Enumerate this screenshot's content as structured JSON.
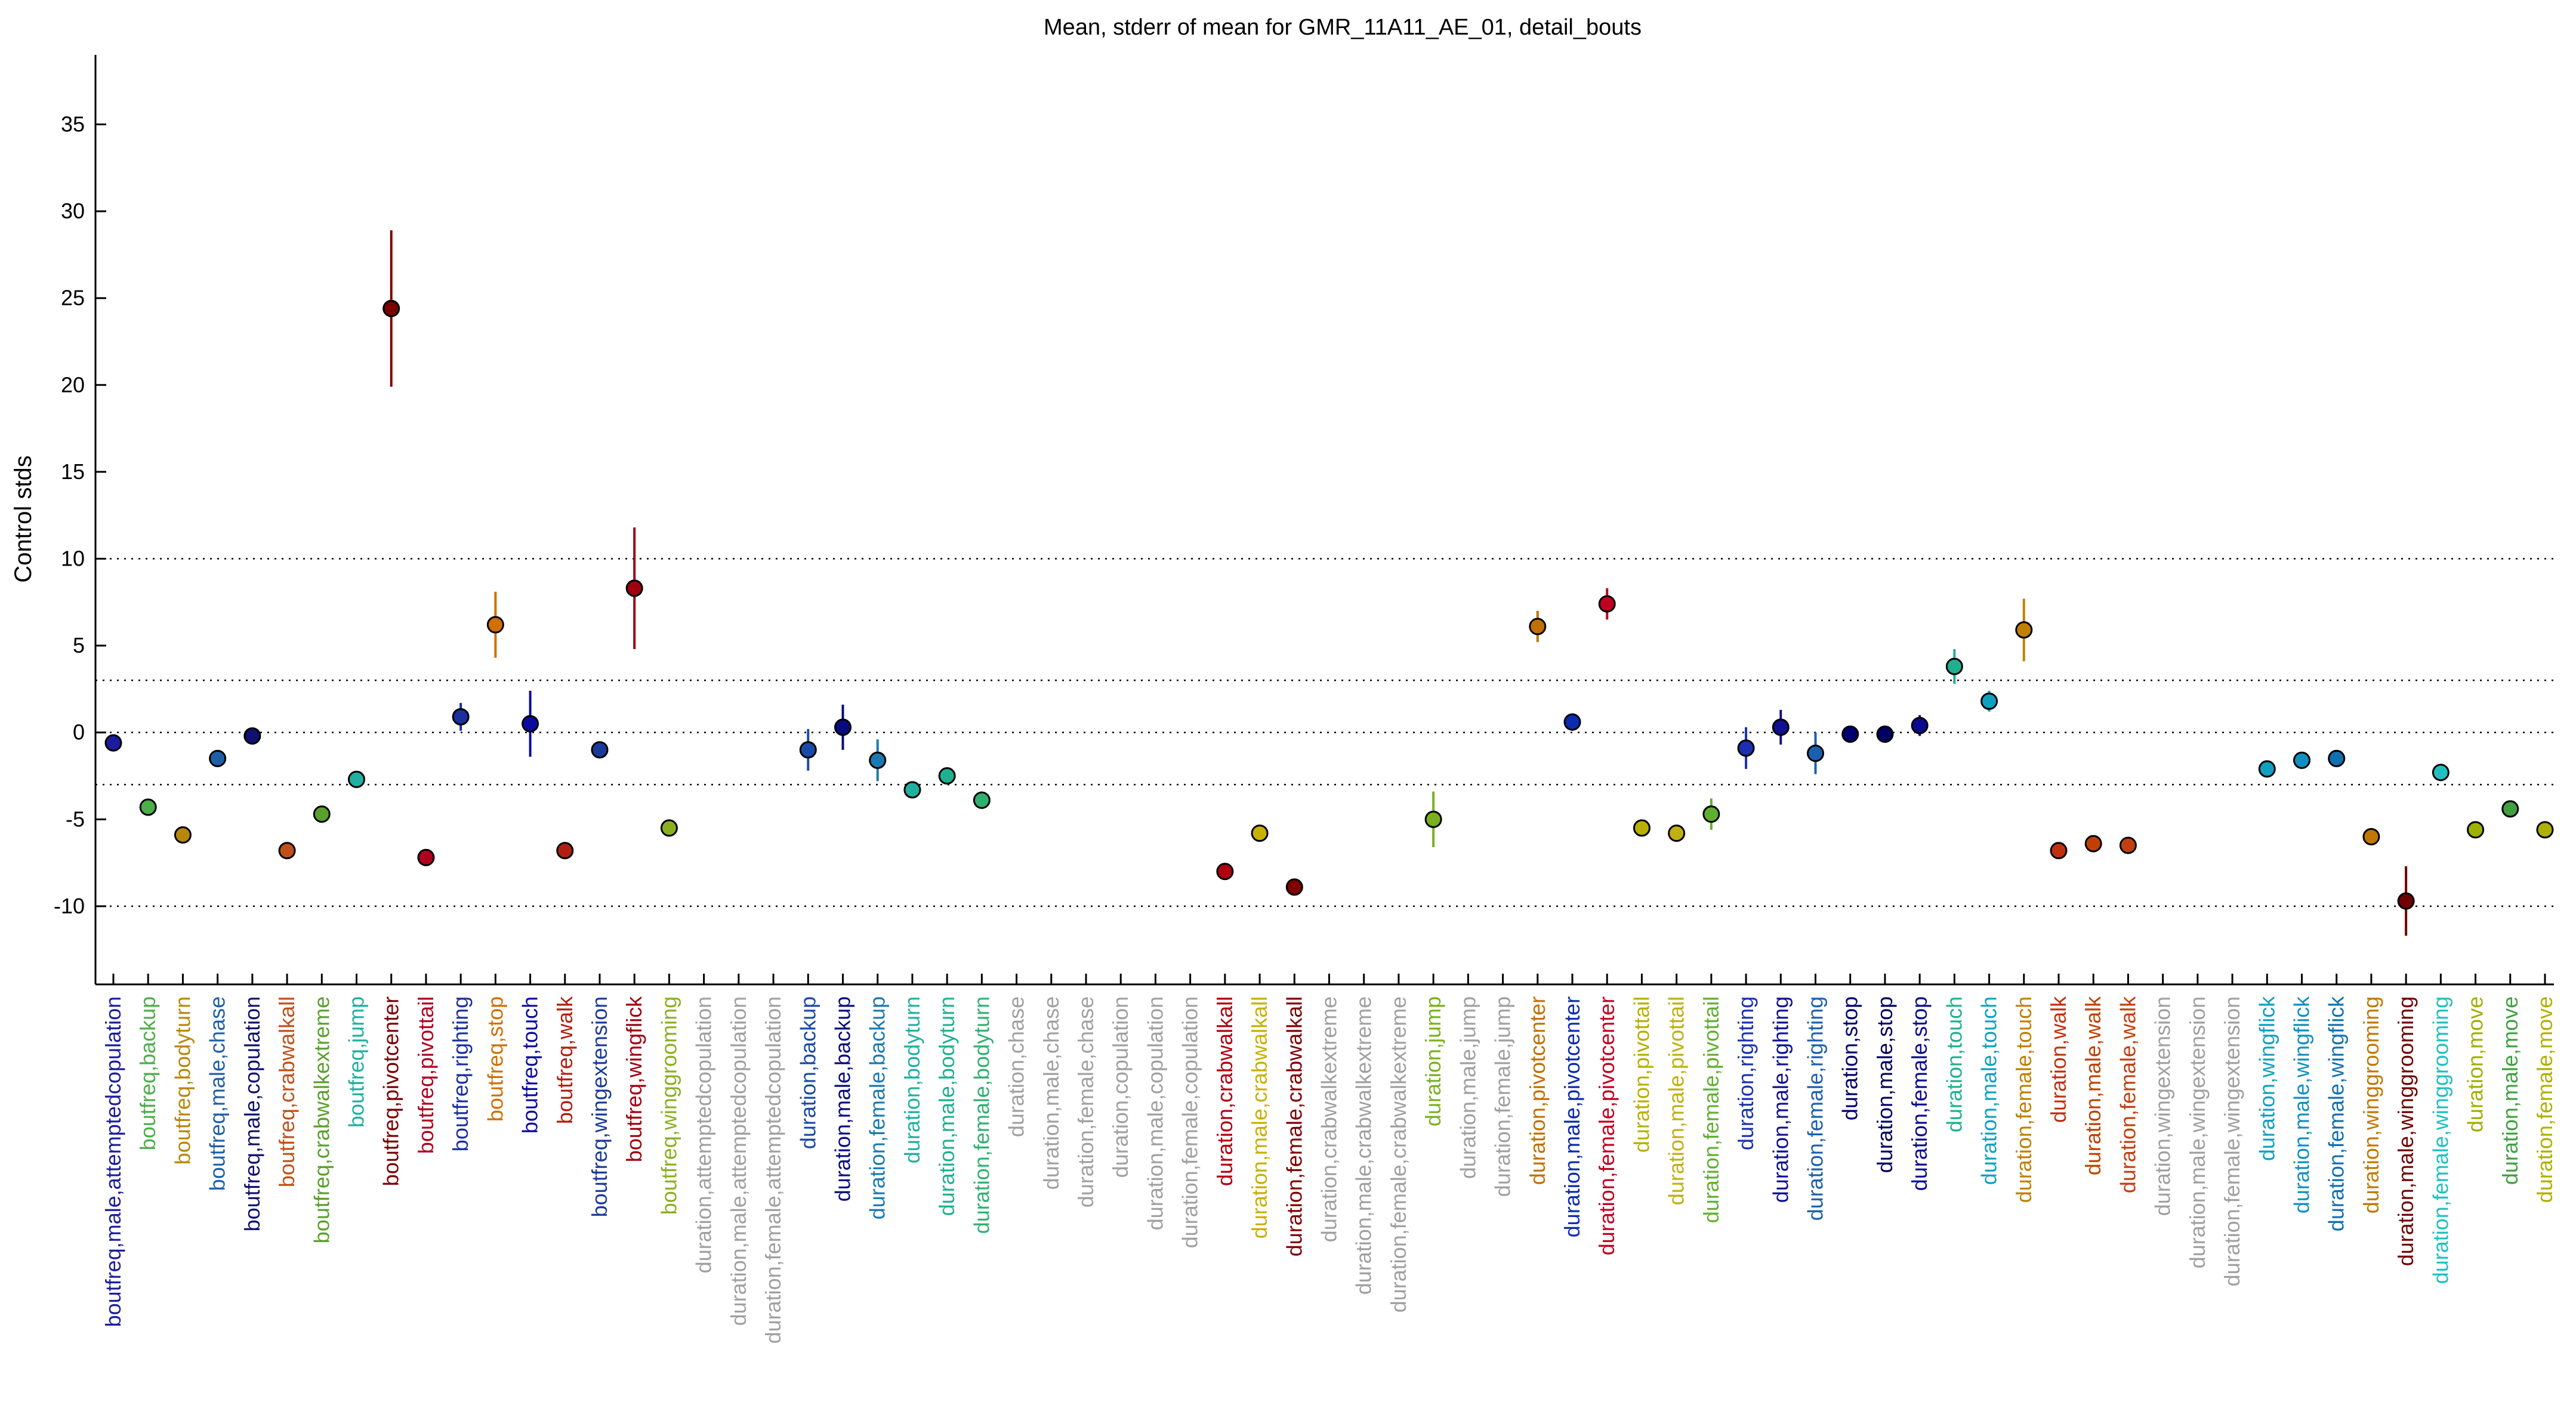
{
  "chart_data": {
    "type": "scatter",
    "title": "Mean, stderr of mean for GMR_11A11_AE_01, detail_bouts",
    "ylabel": "Control stds",
    "xlabel": "",
    "ylim": [
      -14.5,
      39
    ],
    "yticks": [
      -10,
      -5,
      0,
      5,
      10,
      15,
      20,
      25,
      30,
      35
    ],
    "reference_lines": [
      -10,
      -3,
      0,
      3,
      10
    ],
    "grid": false,
    "categories": [
      {
        "label": "boutfreq,male,attemptedcopulation",
        "color": "#1c1c9c"
      },
      {
        "label": "boutfreq,backup",
        "color": "#4daf4a"
      },
      {
        "label": "boutfreq,bodyturn",
        "color": "#b8860b"
      },
      {
        "label": "boutfreq,male,chase",
        "color": "#1f5fa8"
      },
      {
        "label": "boutfreq,male,copulation",
        "color": "#10106e"
      },
      {
        "label": "boutfreq,crabwalkall",
        "color": "#c0501a"
      },
      {
        "label": "boutfreq,crabwalkextreme",
        "color": "#5aa02c"
      },
      {
        "label": "boutfreq,jump",
        "color": "#20b0a0"
      },
      {
        "label": "boutfreq,pivotcenter",
        "color": "#7a0000"
      },
      {
        "label": "boutfreq,pivottail",
        "color": "#b00020"
      },
      {
        "label": "boutfreq,righting",
        "color": "#1a2fa0"
      },
      {
        "label": "boutfreq,stop",
        "color": "#d07000"
      },
      {
        "label": "boutfreq,touch",
        "color": "#0a0aa0"
      },
      {
        "label": "boutfreq,walk",
        "color": "#b02010"
      },
      {
        "label": "boutfreq,wingextension",
        "color": "#1a3a9a"
      },
      {
        "label": "boutfreq,wingflick",
        "color": "#a00010"
      },
      {
        "label": "boutfreq,winggrooming",
        "color": "#8ab020"
      },
      {
        "label": "duration,attemptedcopulation",
        "color": "#a0a0a0"
      },
      {
        "label": "duration,male,attemptedcopulation",
        "color": "#a0a0a0"
      },
      {
        "label": "duration,female,attemptedcopulation",
        "color": "#a0a0a0"
      },
      {
        "label": "duration,backup",
        "color": "#1a4aa8"
      },
      {
        "label": "duration,male,backup",
        "color": "#0a0a80"
      },
      {
        "label": "duration,female,backup",
        "color": "#1a7ab0"
      },
      {
        "label": "duration,bodyturn",
        "color": "#20b0a0"
      },
      {
        "label": "duration,male,bodyturn",
        "color": "#20b090"
      },
      {
        "label": "duration,female,bodyturn",
        "color": "#30b070"
      },
      {
        "label": "duration,chase",
        "color": "#a0a0a0"
      },
      {
        "label": "duration,male,chase",
        "color": "#a0a0a0"
      },
      {
        "label": "duration,female,chase",
        "color": "#a0a0a0"
      },
      {
        "label": "duration,copulation",
        "color": "#a0a0a0"
      },
      {
        "label": "duration,male,copulation",
        "color": "#a0a0a0"
      },
      {
        "label": "duration,female,copulation",
        "color": "#a0a0a0"
      },
      {
        "label": "duration,crabwalkall",
        "color": "#b00010"
      },
      {
        "label": "duration,male,crabwalkall",
        "color": "#c8b000"
      },
      {
        "label": "duration,female,crabwalkall",
        "color": "#800000"
      },
      {
        "label": "duration,crabwalkextreme",
        "color": "#a0a0a0"
      },
      {
        "label": "duration,male,crabwalkextreme",
        "color": "#a0a0a0"
      },
      {
        "label": "duration,female,crabwalkextreme",
        "color": "#a0a0a0"
      },
      {
        "label": "duration,jump",
        "color": "#7ab020"
      },
      {
        "label": "duration,male,jump",
        "color": "#a0a0a0"
      },
      {
        "label": "duration,female,jump",
        "color": "#a0a0a0"
      },
      {
        "label": "duration,pivotcenter",
        "color": "#c07000"
      },
      {
        "label": "duration,male,pivotcenter",
        "color": "#0a2ab0"
      },
      {
        "label": "duration,female,pivotcenter",
        "color": "#c00020"
      },
      {
        "label": "duration,pivottail",
        "color": "#b8b000"
      },
      {
        "label": "duration,male,pivottail",
        "color": "#c0b010"
      },
      {
        "label": "duration,female,pivottail",
        "color": "#60b030"
      },
      {
        "label": "duration,righting",
        "color": "#1a30b0"
      },
      {
        "label": "duration,male,righting",
        "color": "#101090"
      },
      {
        "label": "duration,female,righting",
        "color": "#1a60b0"
      },
      {
        "label": "duration,stop",
        "color": "#000070"
      },
      {
        "label": "duration,male,stop",
        "color": "#000060"
      },
      {
        "label": "duration,female,stop",
        "color": "#0a0a90"
      },
      {
        "label": "duration,touch",
        "color": "#20b090"
      },
      {
        "label": "duration,male,touch",
        "color": "#10a0c0"
      },
      {
        "label": "duration,female,touch",
        "color": "#c08000"
      },
      {
        "label": "duration,walk",
        "color": "#c03010"
      },
      {
        "label": "duration,male,walk",
        "color": "#c04000"
      },
      {
        "label": "duration,female,walk",
        "color": "#c04010"
      },
      {
        "label": "duration,wingextension",
        "color": "#a0a0a0"
      },
      {
        "label": "duration,male,wingextension",
        "color": "#a0a0a0"
      },
      {
        "label": "duration,female,wingextension",
        "color": "#a0a0a0"
      },
      {
        "label": "duration,wingflick",
        "color": "#10a0c0"
      },
      {
        "label": "duration,male,wingflick",
        "color": "#1090c0"
      },
      {
        "label": "duration,female,wingflick",
        "color": "#1070b0"
      },
      {
        "label": "duration,winggrooming",
        "color": "#c07800"
      },
      {
        "label": "duration,male,winggrooming",
        "color": "#700000"
      },
      {
        "label": "duration,female,winggrooming",
        "color": "#20c0c0"
      },
      {
        "label": "duration,move",
        "color": "#a0b000"
      },
      {
        "label": "duration,male,move",
        "color": "#40a040"
      },
      {
        "label": "duration,female,move",
        "color": "#b0b000"
      }
    ],
    "series": [
      {
        "values": [
          -0.6,
          -4.3,
          -5.9,
          -1.5,
          -0.2,
          -6.8,
          -4.7,
          -2.7,
          24.4,
          -7.2,
          0.9,
          6.2,
          0.5,
          -6.8,
          -1.0,
          8.3,
          -5.5,
          null,
          null,
          null,
          -1.0,
          0.3,
          -1.6,
          -3.3,
          -2.5,
          -3.9,
          null,
          null,
          null,
          null,
          null,
          null,
          -8.0,
          -5.8,
          -8.9,
          null,
          null,
          null,
          -5.0,
          null,
          null,
          6.1,
          0.6,
          7.4,
          -5.5,
          -5.8,
          -4.7,
          -0.9,
          0.3,
          -1.2,
          -0.1,
          -0.1,
          0.4,
          3.8,
          1.8,
          5.9,
          -6.8,
          -6.4,
          -6.5,
          null,
          null,
          null,
          -2.1,
          -1.6,
          -1.5,
          -6.0,
          -9.7,
          -2.3,
          -5.6,
          -4.4,
          -5.6
        ]
      },
      {
        "stderr": [
          0.2,
          0.2,
          0.3,
          0.2,
          0.2,
          0.2,
          0.2,
          0.3,
          4.5,
          0.3,
          0.8,
          1.9,
          1.9,
          0.3,
          0.2,
          3.5,
          0.3,
          null,
          null,
          null,
          1.2,
          1.3,
          1.2,
          0.2,
          0.4,
          0.5,
          null,
          null,
          null,
          null,
          null,
          null,
          0.2,
          0.2,
          0.2,
          null,
          null,
          null,
          1.6,
          null,
          null,
          0.9,
          0.5,
          0.9,
          0.4,
          0.4,
          0.9,
          1.2,
          1.0,
          1.2,
          0.3,
          0.3,
          0.6,
          1.0,
          0.6,
          1.8,
          0.3,
          0.3,
          0.3,
          null,
          null,
          null,
          0.2,
          0.2,
          0.2,
          0.5,
          2.0,
          0.5,
          0.2,
          0.2,
          0.2
        ]
      }
    ]
  }
}
